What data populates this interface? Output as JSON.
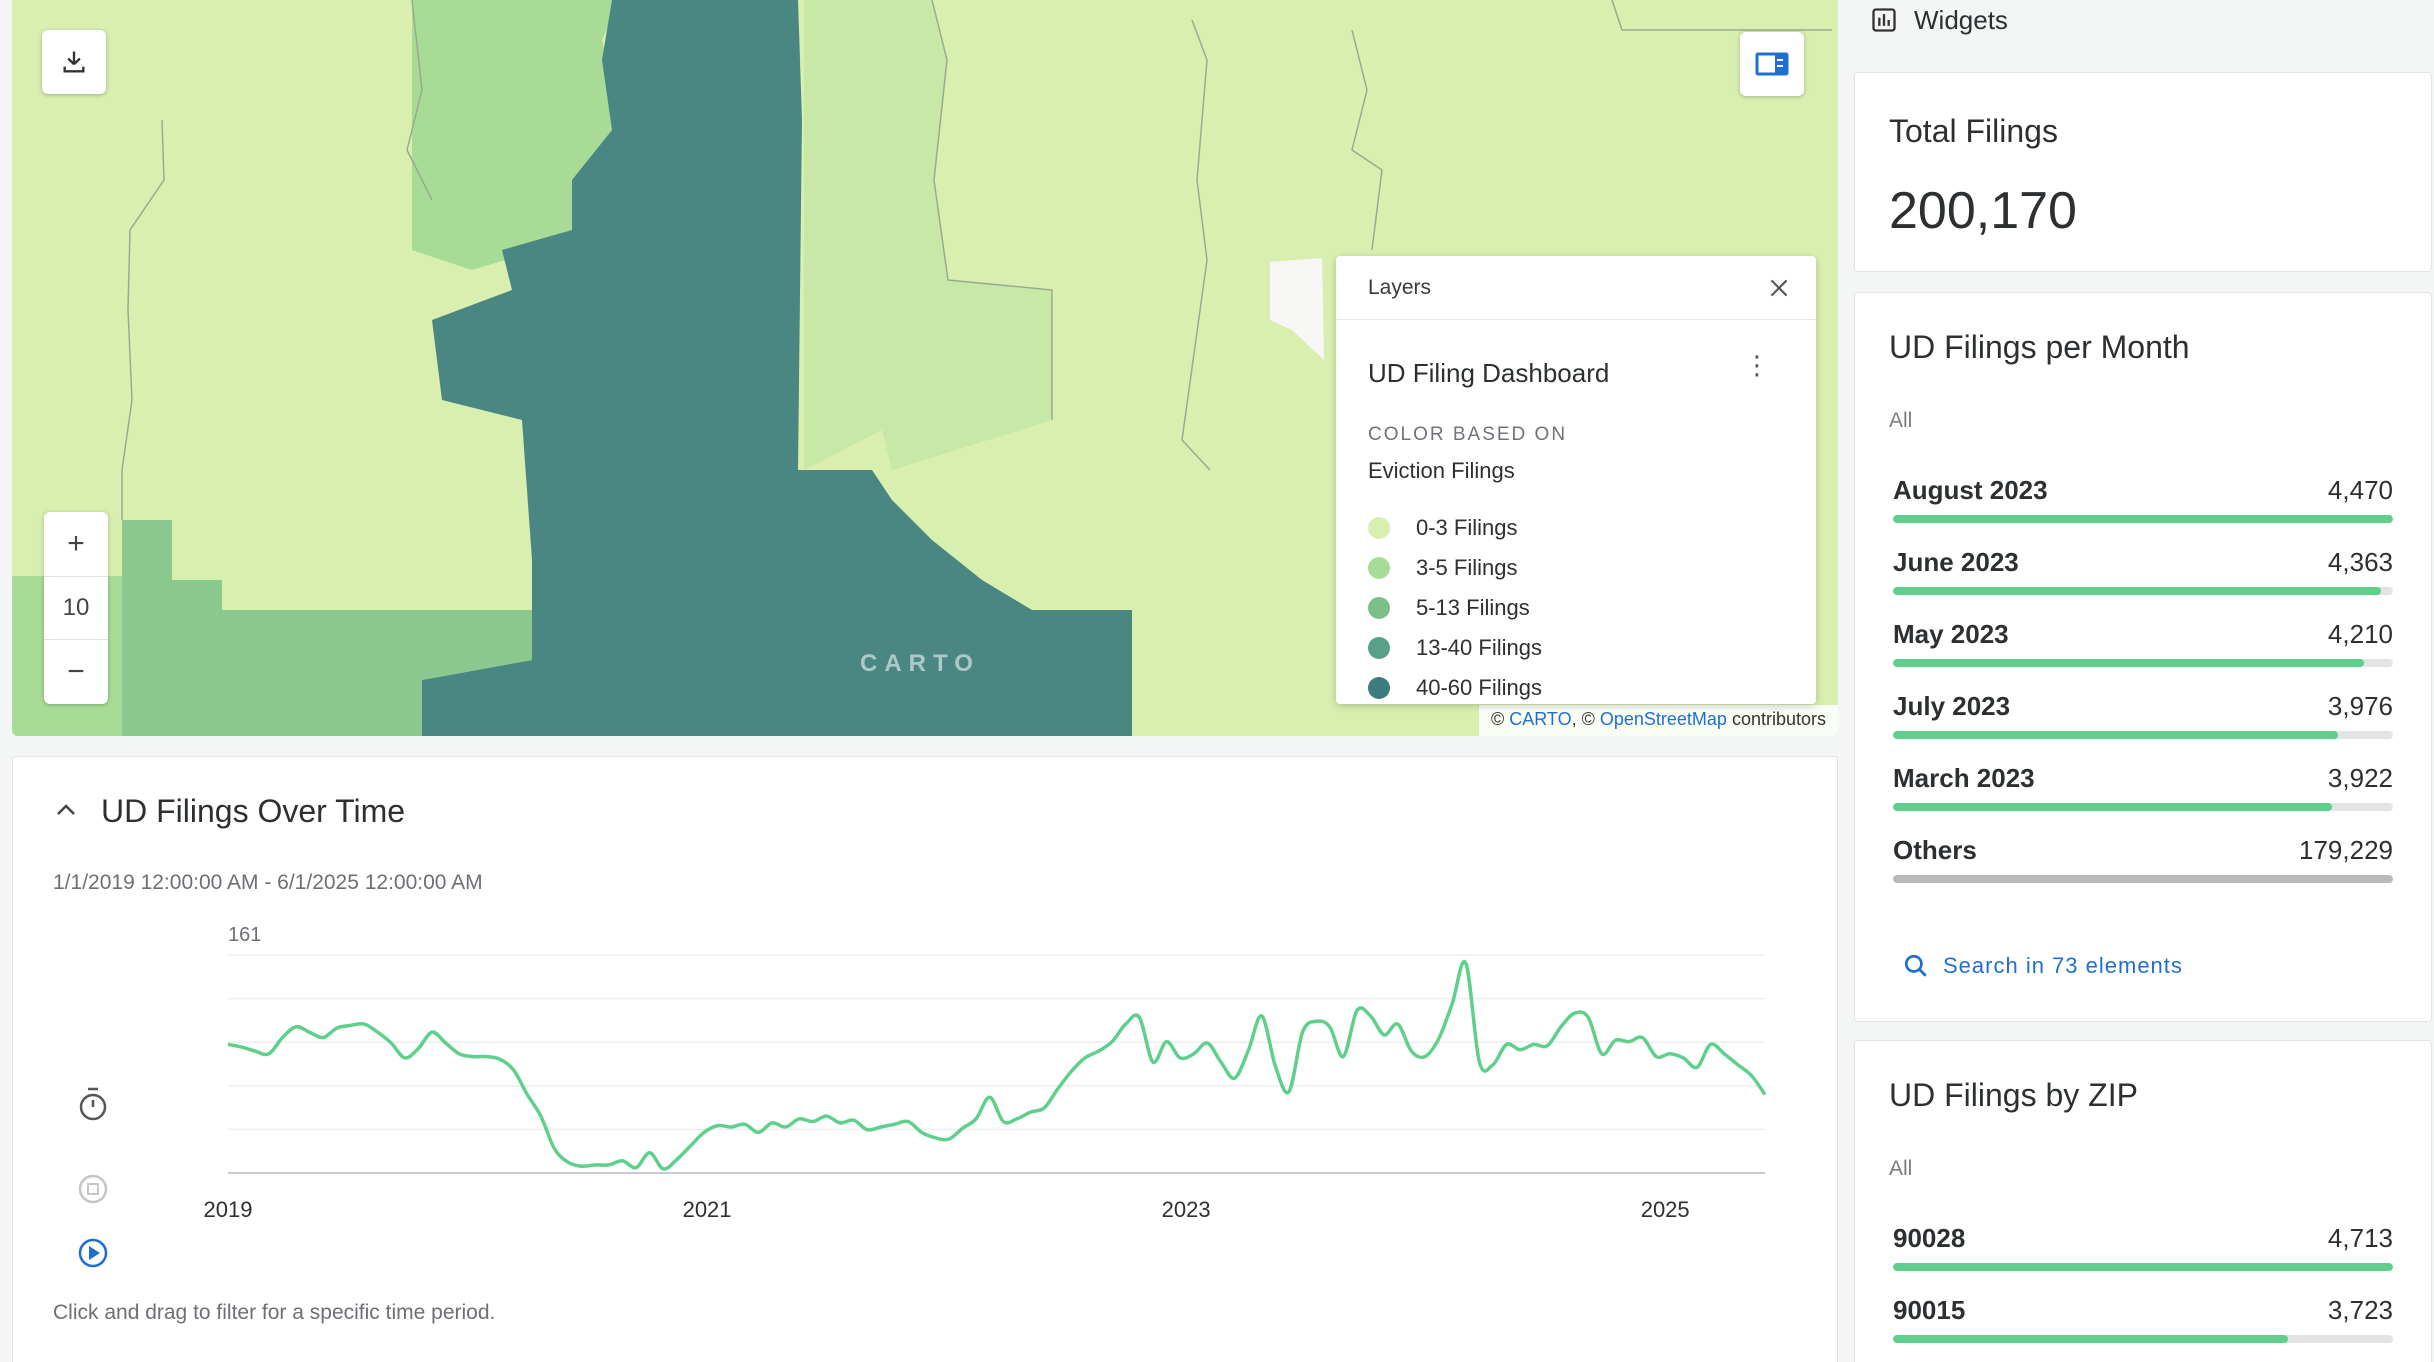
{
  "map": {
    "zoom_level": "10",
    "carto_watermark": "CARTO",
    "attribution": {
      "prefix": "©",
      "carto": "CARTO",
      "sep": ", ©",
      "osm": "OpenStreetMap",
      "suffix": "contributors"
    },
    "icons": {
      "download": "download-icon",
      "legend_toggle": "legend-panel-icon",
      "zoom_in": "plus-icon",
      "zoom_out": "minus-icon"
    }
  },
  "layers_panel": {
    "header": "Layers",
    "layer_name": "UD Filing Dashboard",
    "color_based_on_label": "COLOR BASED ON",
    "color_field": "Eviction Filings",
    "legend": [
      {
        "label": "0-3 Filings",
        "color": "#d9efb0"
      },
      {
        "label": "3-5 Filings",
        "color": "#a8dc96"
      },
      {
        "label": "5-13 Filings",
        "color": "#7cbf88"
      },
      {
        "label": "13-40 Filings",
        "color": "#58a086"
      },
      {
        "label": "40-60 Filings",
        "color": "#3c7c7c"
      }
    ]
  },
  "time_series": {
    "title": "UD Filings Over Time",
    "range": "1/1/2019 12:00:00 AM - 6/1/2025 12:00:00 AM",
    "hint": "Click and drag to filter for a specific time period.",
    "y_max_label": "161",
    "controls": [
      "timer-icon",
      "stop-icon",
      "play-icon"
    ]
  },
  "chart_data": {
    "type": "line",
    "xlabel": "",
    "ylabel": "",
    "ymax": 161,
    "ylim": [
      0,
      161
    ],
    "x_ticks": [
      "2019",
      "2021",
      "2023",
      "2025"
    ],
    "x_range": [
      "2019-01",
      "2025-06"
    ],
    "series": [
      {
        "color": "#5fd08c",
        "values": [
          95,
          93,
          90,
          88,
          100,
          108,
          104,
          100,
          107,
          109,
          110,
          104,
          96,
          85,
          92,
          104,
          96,
          88,
          86,
          86,
          84,
          76,
          58,
          42,
          18,
          8,
          5,
          6,
          6,
          9,
          4,
          15,
          3,
          10,
          20,
          30,
          35,
          34,
          36,
          30,
          37,
          34,
          40,
          38,
          42,
          37,
          39,
          32,
          34,
          36,
          38,
          30,
          26,
          25,
          33,
          40,
          56,
          38,
          40,
          45,
          48,
          62,
          75,
          85,
          90,
          97,
          110,
          115,
          82,
          97,
          85,
          88,
          96,
          82,
          70,
          90,
          116,
          79,
          60,
          104,
          112,
          108,
          86,
          120,
          116,
          102,
          110,
          90,
          86,
          99,
          125,
          155,
          82,
          80,
          95,
          91,
          95,
          94,
          108,
          118,
          115,
          88,
          98,
          97,
          100,
          86,
          88,
          85,
          78,
          95,
          88,
          80,
          72,
          58
        ]
      }
    ]
  },
  "sidebar": {
    "header": "Widgets",
    "total": {
      "title": "Total Filings",
      "value": "200,170"
    },
    "per_month": {
      "title": "UD Filings per Month",
      "filter": "All",
      "rows": [
        {
          "label": "August 2023",
          "value": "4,470",
          "fraction": 1.0
        },
        {
          "label": "June 2023",
          "value": "4,363",
          "fraction": 0.976
        },
        {
          "label": "May 2023",
          "value": "4,210",
          "fraction": 0.942
        },
        {
          "label": "July 2023",
          "value": "3,976",
          "fraction": 0.889
        },
        {
          "label": "March 2023",
          "value": "3,922",
          "fraction": 0.877
        },
        {
          "label": "Others",
          "value": "179,229",
          "fraction": 1.0,
          "gray": true
        }
      ],
      "search_label": "Search in 73 elements"
    },
    "by_zip": {
      "title": "UD Filings by ZIP",
      "filter": "All",
      "rows": [
        {
          "label": "90028",
          "value": "4,713",
          "fraction": 1.0
        },
        {
          "label": "90015",
          "value": "3,723",
          "fraction": 0.79
        }
      ]
    }
  }
}
